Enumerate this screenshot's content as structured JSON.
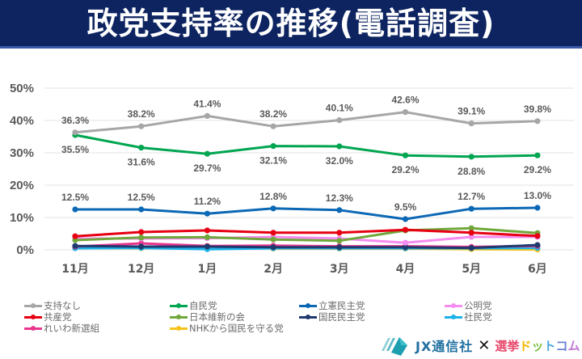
{
  "header": {
    "title": "政党支持率の推移(電話調査)"
  },
  "chart_data": {
    "type": "line",
    "title": "政党支持率の推移(電話調査)",
    "xlabel": "",
    "ylabel": "",
    "ylim": [
      0,
      50
    ],
    "yticks": [
      0,
      10,
      20,
      30,
      40,
      50
    ],
    "ytick_labels": [
      "0%",
      "10%",
      "20%",
      "30%",
      "40%",
      "50%"
    ],
    "categories": [
      "11月",
      "12月",
      "1月",
      "2月",
      "3月",
      "4月",
      "5月",
      "6月"
    ],
    "grid": true,
    "legend_position": "bottom",
    "series": [
      {
        "name": "支持なし",
        "color": "#a6a6a6",
        "values": [
          36.3,
          38.2,
          41.4,
          38.2,
          40.1,
          42.6,
          39.1,
          39.8
        ],
        "labels": [
          "36.3%",
          "38.2%",
          "41.4%",
          "38.2%",
          "40.1%",
          "42.6%",
          "39.1%",
          "39.8%"
        ],
        "label_pos": "above"
      },
      {
        "name": "自民党",
        "color": "#00a550",
        "values": [
          35.5,
          31.6,
          29.7,
          32.1,
          32.0,
          29.2,
          28.8,
          29.2
        ],
        "labels": [
          "35.5%",
          "31.6%",
          "29.7%",
          "32.1%",
          "32.0%",
          "29.2%",
          "28.8%",
          "29.2%"
        ],
        "label_pos": "below"
      },
      {
        "name": "立憲民主党",
        "color": "#0b68b5",
        "values": [
          12.5,
          12.5,
          11.2,
          12.8,
          12.3,
          9.5,
          12.7,
          13.0
        ],
        "labels": [
          "12.5%",
          "12.5%",
          "11.2%",
          "12.8%",
          "12.3%",
          "9.5%",
          "12.7%",
          "13.0%"
        ],
        "label_pos": "above"
      },
      {
        "name": "公明党",
        "color": "#f58cf0",
        "values": [
          3.5,
          3.5,
          3.6,
          4.0,
          3.5,
          2.2,
          4.0,
          4.0
        ]
      },
      {
        "name": "共産党",
        "color": "#e60012",
        "values": [
          4.2,
          5.5,
          6.0,
          5.3,
          5.3,
          6.2,
          5.3,
          4.3
        ]
      },
      {
        "name": "日本維新の会",
        "color": "#70a83b",
        "values": [
          3.0,
          3.8,
          3.9,
          3.2,
          2.8,
          6.0,
          6.7,
          5.2
        ]
      },
      {
        "name": "国民民主党",
        "color": "#1f3a6e",
        "values": [
          1.2,
          1.0,
          1.0,
          0.8,
          0.8,
          0.8,
          0.6,
          1.5
        ]
      },
      {
        "name": "社民党",
        "color": "#1ab2e8",
        "values": [
          0.5,
          0.6,
          0.2,
          0.5,
          0.5,
          0.5,
          0.5,
          0.6
        ]
      },
      {
        "name": "れいわ新選組",
        "color": "#e8368f",
        "values": [
          1.0,
          2.0,
          1.2,
          1.3,
          1.1,
          1.1,
          0.9,
          1.2
        ]
      },
      {
        "name": "NHKから国民を守る党",
        "color": "#f7c21b",
        "values": [
          0.6,
          0.5,
          1.2,
          0.4,
          0.4,
          0.4,
          0.2,
          0.1
        ]
      }
    ]
  },
  "legend": {
    "items": [
      {
        "name": "支持なし",
        "color": "#a6a6a6"
      },
      {
        "name": "自民党",
        "color": "#00a550"
      },
      {
        "name": "立憲民主党",
        "color": "#0b68b5"
      },
      {
        "name": "公明党",
        "color": "#f58cf0"
      },
      {
        "name": "共産党",
        "color": "#e60012"
      },
      {
        "name": "日本維新の会",
        "color": "#70a83b"
      },
      {
        "name": "国民民主党",
        "color": "#1f3a6e"
      },
      {
        "name": "社民党",
        "color": "#1ab2e8"
      },
      {
        "name": "れいわ新選組",
        "color": "#e8368f"
      },
      {
        "name": "NHKから国民を守る党",
        "color": "#f7c21b"
      }
    ]
  },
  "footer": {
    "jx_logo_text": "JX通信社",
    "cross": "✕",
    "senkyo_logo": {
      "text": "選挙ドットコム",
      "parts": [
        {
          "t": "選",
          "c": "#e8476b"
        },
        {
          "t": "挙",
          "c": "#e8476b"
        },
        {
          "t": "ド",
          "c": "#f5b800"
        },
        {
          "t": "ッ",
          "c": "#7cc242"
        },
        {
          "t": "ト",
          "c": "#4aa8e0"
        },
        {
          "t": "コ",
          "c": "#6a7fd6"
        },
        {
          "t": "ム",
          "c": "#c27ad6"
        }
      ]
    }
  }
}
